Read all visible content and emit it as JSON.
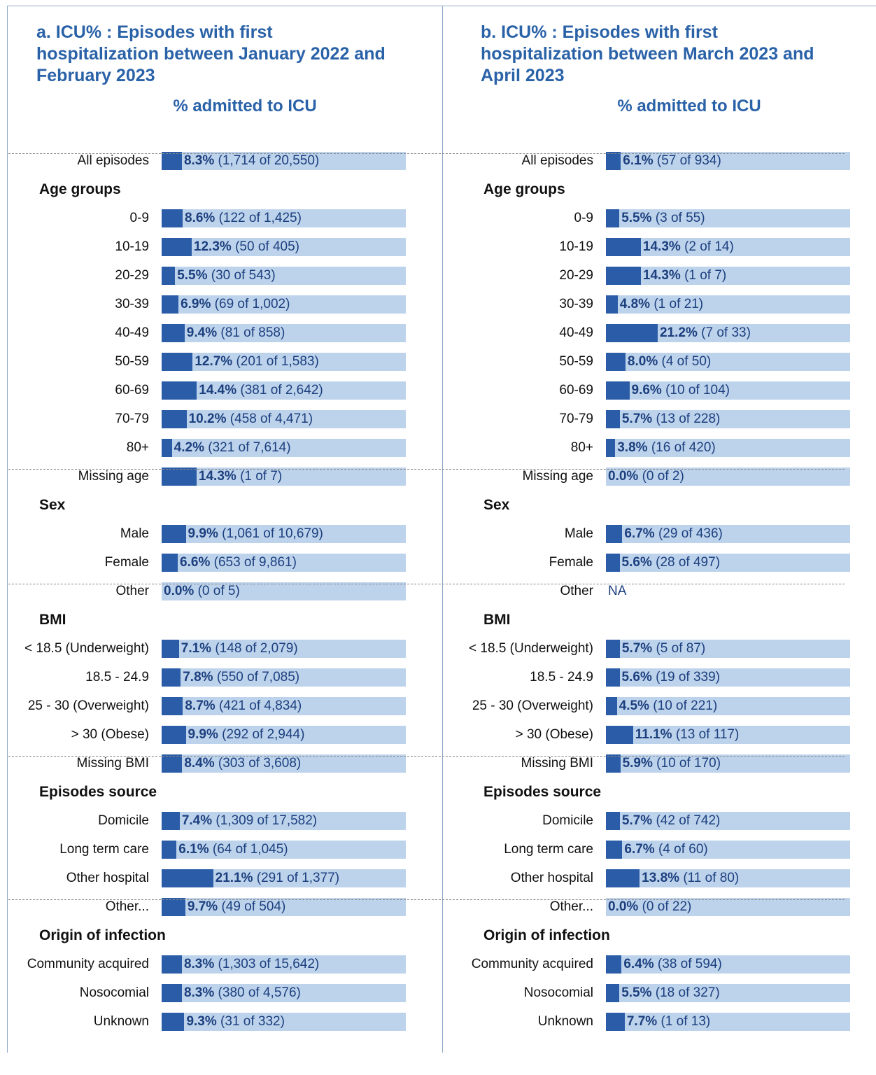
{
  "chart_data": [
    {
      "type": "bar",
      "title": "a. ICU% : Episodes with first hospitalization between January 2022 and February 2023",
      "subtitle": "% admitted to  ICU",
      "xlim": [
        0,
        100
      ],
      "color": "#2a5ca8",
      "track_color": "#bdd3ec",
      "groups": [
        {
          "categories": [
            "All episodes"
          ],
          "values": [
            8.3
          ],
          "value_labels": [
            "8.3%"
          ],
          "details": [
            "(1,714 of 20,550)"
          ]
        },
        {
          "name": "Age groups",
          "categories": [
            "0-9",
            "10-19",
            "20-29",
            "30-39",
            "40-49",
            "50-59",
            "60-69",
            "70-79",
            "80+",
            "Missing age"
          ],
          "values": [
            8.6,
            12.3,
            5.5,
            6.9,
            9.4,
            12.7,
            14.4,
            10.2,
            4.2,
            14.3
          ],
          "value_labels": [
            "8.6%",
            "12.3%",
            "5.5%",
            "6.9%",
            "9.4%",
            "12.7%",
            "14.4%",
            "10.2%",
            "4.2%",
            "14.3%"
          ],
          "details": [
            "(122 of 1,425)",
            "(50 of 405)",
            "(30 of 543)",
            "(69 of 1,002)",
            "(81 of 858)",
            "(201 of 1,583)",
            "(381 of 2,642)",
            "(458 of 4,471)",
            "(321 of 7,614)",
            "(1 of 7)"
          ]
        },
        {
          "name": "Sex",
          "categories": [
            "Male",
            "Female",
            "Other"
          ],
          "values": [
            9.9,
            6.6,
            0.0
          ],
          "value_labels": [
            "9.9%",
            "6.6%",
            "0.0%"
          ],
          "details": [
            "(1,061 of 10,679)",
            "(653 of 9,861)",
            "(0 of 5)"
          ]
        },
        {
          "name": "BMI",
          "categories": [
            "< 18.5 (Underweight)",
            "18.5 - 24.9",
            "25 - 30 (Overweight)",
            "> 30 (Obese)",
            "Missing BMI"
          ],
          "values": [
            7.1,
            7.8,
            8.7,
            9.9,
            8.4
          ],
          "value_labels": [
            "7.1%",
            "7.8%",
            "8.7%",
            "9.9%",
            "8.4%"
          ],
          "details": [
            "(148 of 2,079)",
            "(550 of 7,085)",
            "(421 of 4,834)",
            "(292 of 2,944)",
            "(303 of 3,608)"
          ]
        },
        {
          "name": "Episodes source",
          "categories": [
            "Domicile",
            "Long term care",
            "Other hospital",
            "Other..."
          ],
          "values": [
            7.4,
            6.1,
            21.1,
            9.7
          ],
          "value_labels": [
            "7.4%",
            "6.1%",
            "21.1%",
            "9.7%"
          ],
          "details": [
            "(1,309 of 17,582)",
            "(64 of 1,045)",
            "(291 of 1,377)",
            "(49 of 504)"
          ]
        },
        {
          "name": "Origin of infection",
          "categories": [
            "Community acquired",
            "Nosocomial",
            "Unknown"
          ],
          "values": [
            8.3,
            8.3,
            9.3
          ],
          "value_labels": [
            "8.3%",
            "8.3%",
            "9.3%"
          ],
          "details": [
            "(1,303 of 15,642)",
            "(380 of 4,576)",
            "(31 of 332)"
          ]
        }
      ]
    },
    {
      "type": "bar",
      "title": "b. ICU% : Episodes with first hospitalization between March 2023 and April 2023",
      "subtitle": "% admitted to  ICU",
      "xlim": [
        0,
        100
      ],
      "color": "#2a5ca8",
      "track_color": "#bdd3ec",
      "groups": [
        {
          "categories": [
            "All episodes"
          ],
          "values": [
            6.1
          ],
          "value_labels": [
            "6.1%"
          ],
          "details": [
            "(57 of 934)"
          ]
        },
        {
          "name": "Age groups",
          "categories": [
            "0-9",
            "10-19",
            "20-29",
            "30-39",
            "40-49",
            "50-59",
            "60-69",
            "70-79",
            "80+",
            "Missing age"
          ],
          "values": [
            5.5,
            14.3,
            14.3,
            4.8,
            21.2,
            8.0,
            9.6,
            5.7,
            3.8,
            0.0
          ],
          "value_labels": [
            "5.5%",
            "14.3%",
            "14.3%",
            "4.8%",
            "21.2%",
            "8.0%",
            "9.6%",
            "5.7%",
            "3.8%",
            "0.0%"
          ],
          "details": [
            "(3 of 55)",
            "(2 of 14)",
            "(1 of 7)",
            "(1 of 21)",
            "(7 of 33)",
            "(4 of 50)",
            "(10 of 104)",
            "(13 of 228)",
            "(16 of 420)",
            "(0 of 2)"
          ]
        },
        {
          "name": "Sex",
          "categories": [
            "Male",
            "Female",
            "Other"
          ],
          "values": [
            6.7,
            5.6,
            null
          ],
          "value_labels": [
            "6.7%",
            "5.6%",
            "NA"
          ],
          "details": [
            "(29 of 436)",
            "(28 of 497)",
            null
          ]
        },
        {
          "name": "BMI",
          "categories": [
            "< 18.5 (Underweight)",
            "18.5 - 24.9",
            "25 - 30 (Overweight)",
            "> 30 (Obese)",
            "Missing BMI"
          ],
          "values": [
            5.7,
            5.6,
            4.5,
            11.1,
            5.9
          ],
          "value_labels": [
            "5.7%",
            "5.6%",
            "4.5%",
            "11.1%",
            "5.9%"
          ],
          "details": [
            "(5 of 87)",
            "(19 of 339)",
            "(10 of 221)",
            "(13 of 117)",
            "(10 of 170)"
          ]
        },
        {
          "name": "Episodes source",
          "categories": [
            "Domicile",
            "Long term care",
            "Other hospital",
            "Other..."
          ],
          "values": [
            5.7,
            6.7,
            13.8,
            0.0
          ],
          "value_labels": [
            "5.7%",
            "6.7%",
            "13.8%",
            "0.0%"
          ],
          "details": [
            "(42 of 742)",
            "(4 of 60)",
            "(11 of 80)",
            "(0 of 22)"
          ]
        },
        {
          "name": "Origin of infection",
          "categories": [
            "Community acquired",
            "Nosocomial",
            "Unknown"
          ],
          "values": [
            6.4,
            5.5,
            7.7
          ],
          "value_labels": [
            "6.4%",
            "5.5%",
            "7.7%"
          ],
          "details": [
            "(38 of 594)",
            "(18 of 327)",
            "(1 of 13)"
          ]
        }
      ]
    }
  ]
}
